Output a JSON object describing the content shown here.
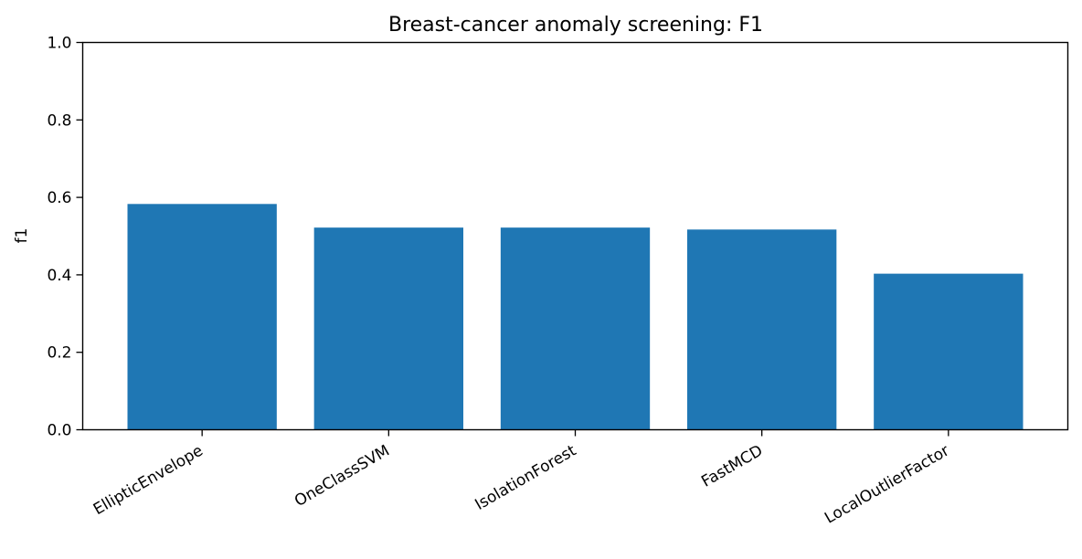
{
  "chart_data": {
    "type": "bar",
    "title": "Breast-cancer anomaly screening: F1",
    "xlabel": "",
    "ylabel": "f1",
    "categories": [
      "EllipticEnvelope",
      "OneClassSVM",
      "IsolationForest",
      "FastMCD",
      "LocalOutlierFactor"
    ],
    "values": [
      0.583,
      0.522,
      0.522,
      0.517,
      0.403
    ],
    "ylim": [
      0,
      1.0
    ],
    "yticks": [
      "0.0",
      "0.2",
      "0.4",
      "0.6",
      "0.8",
      "1.0"
    ],
    "grid": false,
    "legend": "none",
    "bar_color": "#1f77b4"
  }
}
